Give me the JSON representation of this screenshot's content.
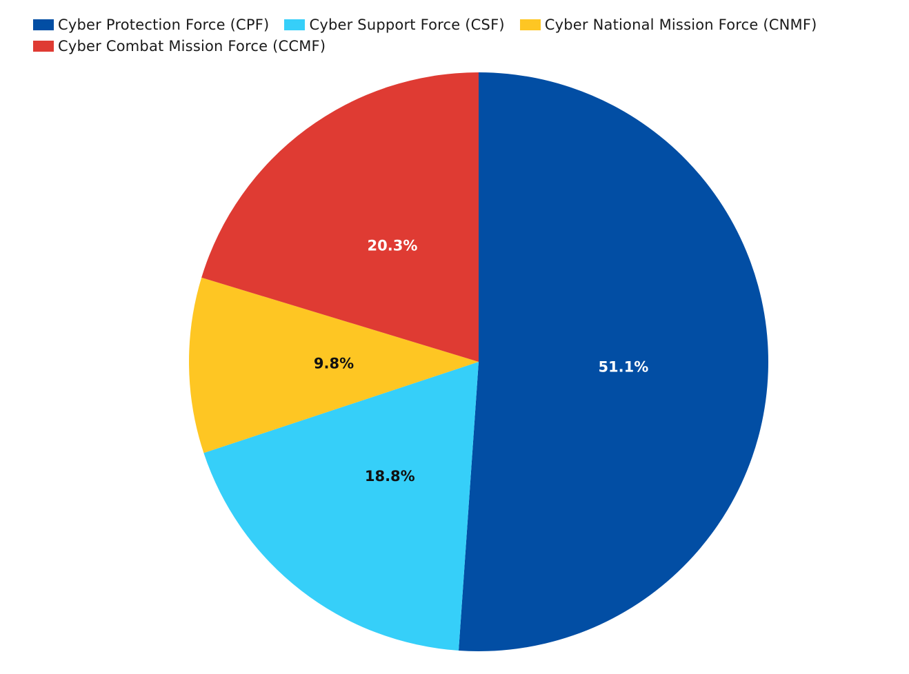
{
  "chart_data": {
    "type": "pie",
    "title": "",
    "legend_position": "top-left",
    "slices": [
      {
        "name": "Cyber Protection Force (CPF)",
        "value": 51.1,
        "label": "51.1%",
        "color": "#024ea4",
        "label_color": "#ffffff"
      },
      {
        "name": "Cyber Support Force (CSF)",
        "value": 18.8,
        "label": "18.8%",
        "color": "#36cff9",
        "label_color": "#111111"
      },
      {
        "name": "Cyber National Mission Force (CNMF)",
        "value": 9.8,
        "label": "9.8%",
        "color": "#fec623",
        "label_color": "#111111"
      },
      {
        "name": "Cyber Combat Mission Force (CCMF)",
        "value": 20.3,
        "label": "20.3%",
        "color": "#df3b33",
        "label_color": "#ffffff"
      }
    ]
  }
}
